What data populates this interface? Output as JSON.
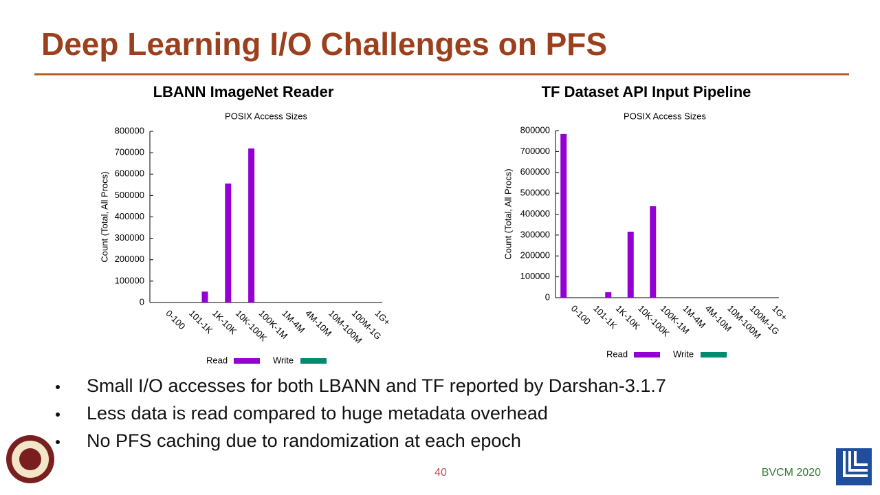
{
  "slide": {
    "title": "Deep Learning I/O Challenges on PFS",
    "bullets": [
      "Small I/O accesses for both LBANN and TF reported by Darshan-3.1.7",
      "Less data is read compared to huge metadata overhead",
      "No PFS caching due to randomization at each epoch"
    ],
    "page_number": "40",
    "footer": "BVCM 2020"
  },
  "chart_data": [
    {
      "type": "bar",
      "title": "LBANN ImageNet Reader",
      "subtitle": "POSIX Access Sizes",
      "y_label": "Count (Total, All Procs)",
      "categories": [
        "0-100",
        "101-1K",
        "1K-10K",
        "10K-100K",
        "100K-1M",
        "1M-4M",
        "4M-10M",
        "10M-100M",
        "100M-1G",
        "1G+"
      ],
      "series": [
        {
          "name": "Read",
          "color": "#9400d3",
          "values": [
            0,
            0,
            51000,
            556000,
            720000,
            0,
            0,
            0,
            0,
            0
          ]
        },
        {
          "name": "Write",
          "color": "#008a70",
          "values": [
            0,
            0,
            0,
            0,
            0,
            0,
            0,
            0,
            0,
            0
          ]
        }
      ],
      "ylim": [
        0,
        800000
      ],
      "yticks": [
        0,
        100000,
        200000,
        300000,
        400000,
        500000,
        600000,
        700000,
        800000
      ],
      "grid": false
    },
    {
      "type": "bar",
      "title": "TF Dataset API Input Pipeline",
      "subtitle": "POSIX Access Sizes",
      "y_label": "Count (Total, All Procs)",
      "categories": [
        "0-100",
        "101-1K",
        "1K-10K",
        "10K-100K",
        "100K-1M",
        "1M-4M",
        "4M-10M",
        "10M-100M",
        "100M-1G",
        "1G+"
      ],
      "series": [
        {
          "name": "Read",
          "color": "#9400d3",
          "values": [
            784000,
            0,
            26000,
            316000,
            438000,
            0,
            0,
            0,
            0,
            0
          ]
        },
        {
          "name": "Write",
          "color": "#008a70",
          "values": [
            0,
            0,
            0,
            0,
            0,
            0,
            0,
            0,
            0,
            0
          ]
        }
      ],
      "ylim": [
        0,
        800000
      ],
      "yticks": [
        0,
        100000,
        200000,
        300000,
        400000,
        500000,
        600000,
        700000,
        800000
      ],
      "grid": false
    }
  ]
}
